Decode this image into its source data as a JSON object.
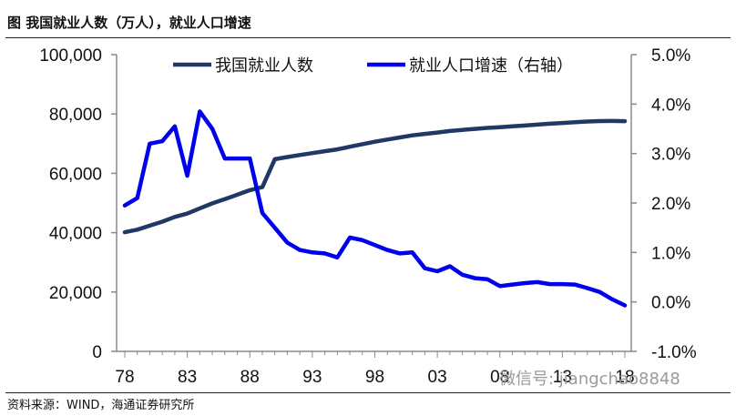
{
  "title": "图   我国就业人数（万人），就业人口增速",
  "source": "资料来源：WIND，海通证券研究所",
  "watermark": "微信号: jiangchao8848",
  "chart_data": {
    "type": "line",
    "title": "",
    "xlabel": "",
    "ylabel": "",
    "y2label": "",
    "categories": [
      "78",
      "79",
      "80",
      "81",
      "82",
      "83",
      "84",
      "85",
      "86",
      "87",
      "88",
      "89",
      "90",
      "91",
      "92",
      "93",
      "94",
      "95",
      "96",
      "97",
      "98",
      "99",
      "00",
      "01",
      "02",
      "03",
      "04",
      "05",
      "06",
      "07",
      "08",
      "09",
      "10",
      "11",
      "12",
      "13",
      "14",
      "15",
      "16",
      "17",
      "18"
    ],
    "x_tick_labels": [
      "78",
      "83",
      "88",
      "93",
      "98",
      "03",
      "08",
      "13",
      "18"
    ],
    "ylim_left": [
      0,
      100000
    ],
    "y_ticks_left": [
      "0",
      "20,000",
      "40,000",
      "60,000",
      "80,000",
      "100,000"
    ],
    "ylim_right": [
      -1.0,
      5.0
    ],
    "y_ticks_right": [
      "-1.0%",
      "0.0%",
      "1.0%",
      "2.0%",
      "3.0%",
      "4.0%",
      "5.0%"
    ],
    "series": [
      {
        "name": "我国就业人数",
        "axis": "left",
        "color": "#1f3864",
        "values": [
          40152,
          41024,
          42361,
          43725,
          45295,
          46436,
          48197,
          49873,
          51282,
          52783,
          54334,
          55329,
          64749,
          65491,
          66152,
          66808,
          67455,
          68065,
          68950,
          69820,
          70637,
          71394,
          72085,
          72797,
          73280,
          73736,
          74264,
          74647,
          74978,
          75321,
          75564,
          75828,
          76105,
          76420,
          76704,
          76977,
          77253,
          77451,
          77603,
          77640,
          77586
        ]
      },
      {
        "name": "就业人口增速（右轴）",
        "axis": "right",
        "color": "#0000ee",
        "values": [
          1.95,
          2.1,
          3.2,
          3.25,
          3.55,
          2.55,
          3.85,
          3.5,
          2.9,
          2.9,
          2.9,
          1.8,
          1.5,
          1.2,
          1.05,
          1.0,
          0.98,
          0.9,
          1.3,
          1.25,
          1.15,
          1.05,
          0.98,
          1.0,
          0.68,
          0.62,
          0.72,
          0.55,
          0.48,
          0.46,
          0.32,
          0.35,
          0.38,
          0.4,
          0.36,
          0.36,
          0.35,
          0.28,
          0.2,
          0.05,
          -0.07
        ]
      }
    ],
    "legend_position": "top",
    "grid": false
  }
}
